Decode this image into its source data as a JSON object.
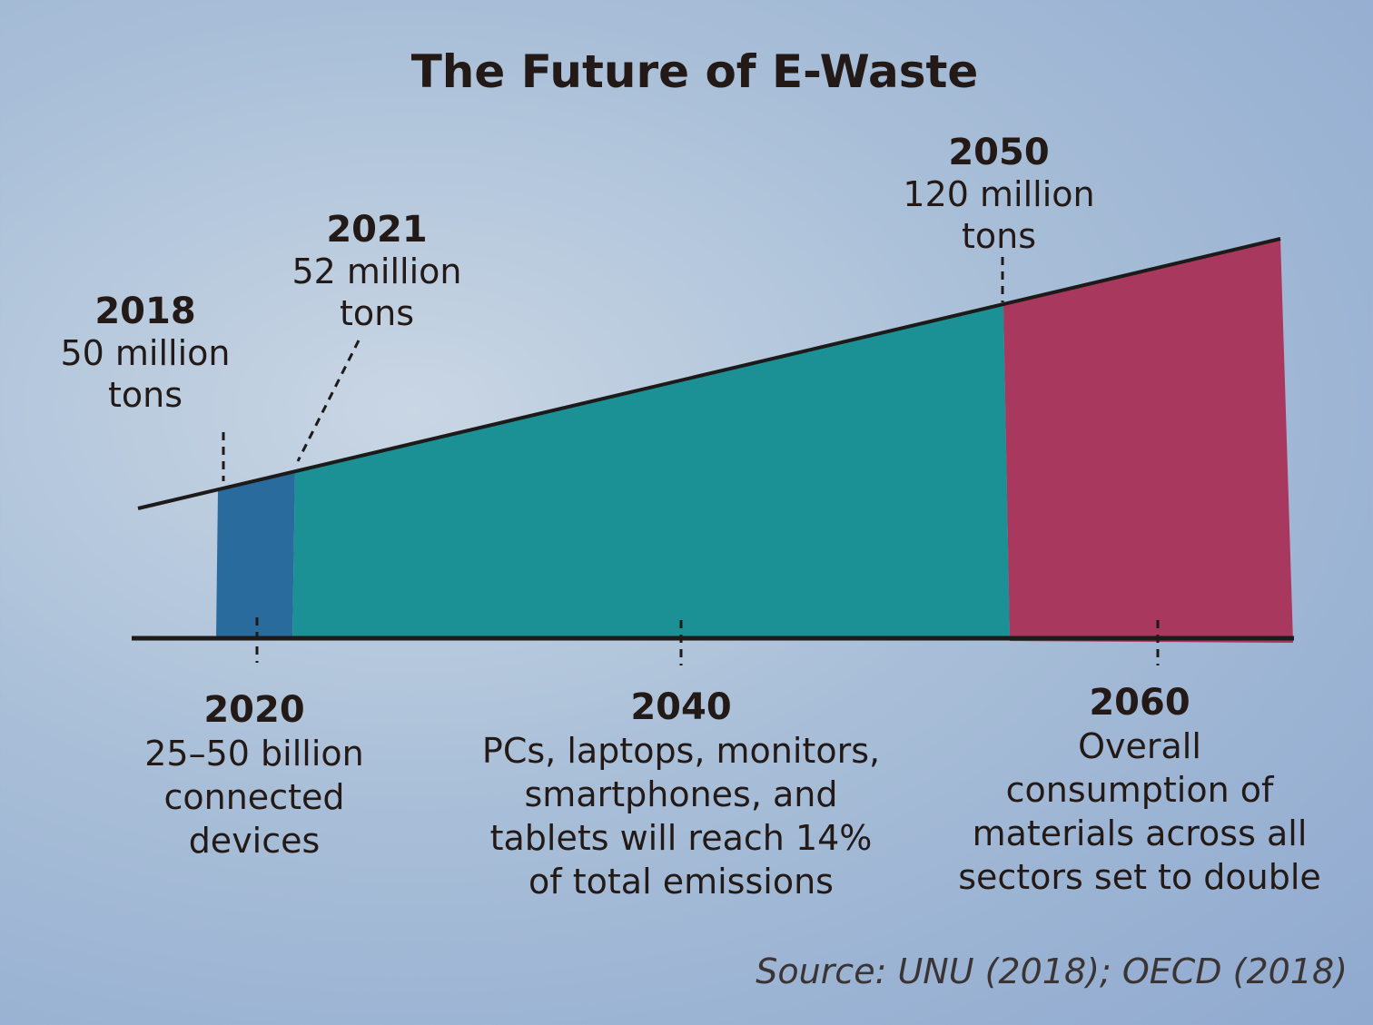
{
  "chart_data": {
    "type": "area",
    "title": "The Future of E-Waste",
    "series": [
      {
        "name": "E-waste (million tons)",
        "x": [
          2018,
          2021,
          2050
        ],
        "values": [
          50,
          52,
          120
        ]
      }
    ],
    "segments": [
      {
        "name": "2018-2021",
        "color": "#2a6b9e"
      },
      {
        "name": "2021-2050",
        "color": "#1b9196"
      },
      {
        "name": "2050-2060+",
        "color": "#a8385e"
      }
    ],
    "annotations": {
      "top": [
        {
          "year": "2018",
          "text": [
            "50 million",
            "tons"
          ]
        },
        {
          "year": "2021",
          "text": [
            "52 million",
            "tons"
          ]
        },
        {
          "year": "2050",
          "text": [
            "120 million",
            "tons"
          ]
        }
      ],
      "bottom": [
        {
          "year": "2020",
          "text": [
            "25–50 billion",
            "connected",
            "devices"
          ]
        },
        {
          "year": "2040",
          "text": [
            "PCs, laptops, monitors,",
            "smartphones, and",
            "tablets will reach 14%",
            "of total emissions"
          ]
        },
        {
          "year": "2060",
          "text": [
            "Overall",
            "consumption of",
            "materials across all",
            "sectors set to double"
          ]
        }
      ]
    },
    "source": "Source: UNU (2018); OECD (2018)"
  }
}
